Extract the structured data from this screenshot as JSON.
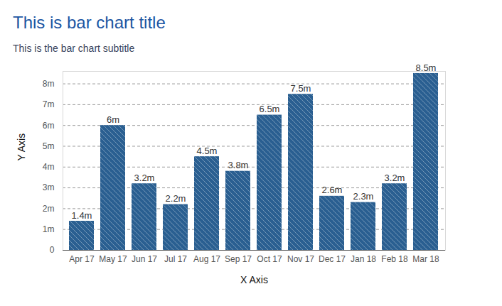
{
  "chart_data": {
    "type": "bar",
    "title": "This is bar chart title",
    "subtitle": "This is the bar chart subtitle",
    "x_label": "X Axis",
    "y_label": "Y Axis",
    "categories": [
      "Apr 17",
      "May 17",
      "Jun 17",
      "Jul 17",
      "Aug 17",
      "Sep 17",
      "Oct 17",
      "Nov 17",
      "Dec 17",
      "Jan 18",
      "Feb 18",
      "Mar 18"
    ],
    "values": [
      1.4,
      6,
      3.2,
      2.2,
      4.5,
      3.8,
      6.5,
      7.5,
      2.6,
      2.3,
      3.2,
      8.5
    ],
    "value_labels": [
      "1.4m",
      "6m",
      "3.2m",
      "2.2m",
      "4.5m",
      "3.8m",
      "6.5m",
      "7.5m",
      "2.6m",
      "2.3m",
      "3.2m",
      "8.5m"
    ],
    "color": "#2a5f91",
    "ylim": [
      0,
      8.6
    ],
    "yticks": [
      0,
      {
        "value": 1,
        "label": "1m"
      },
      {
        "value": 2,
        "label": "2m"
      },
      {
        "value": 3,
        "label": "3m"
      },
      {
        "value": 4,
        "label": "4m"
      },
      {
        "value": 5,
        "label": "5m"
      },
      {
        "value": 6,
        "label": "6m"
      },
      {
        "value": 7,
        "label": "7m"
      },
      {
        "value": 8,
        "label": "8m"
      }
    ],
    "grid": true,
    "data_labels": true
  }
}
